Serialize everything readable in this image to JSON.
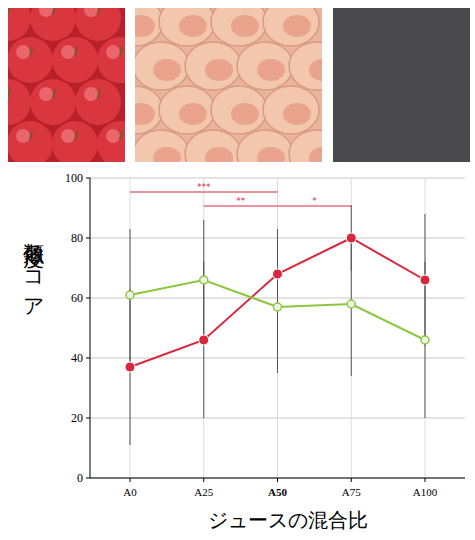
{
  "chart_data": {
    "type": "line",
    "x_label": "ジュースの混合比",
    "y_label": "類似度スコア",
    "categories": [
      "A0",
      "A25",
      "A50",
      "A75",
      "A100"
    ],
    "series": [
      {
        "color": "#d7263d",
        "marker": "circle",
        "line_style": "solid",
        "values": [
          37,
          46,
          68,
          80,
          66
        ],
        "errors": [
          26,
          26,
          15,
          11,
          22
        ]
      },
      {
        "color": "#8cc63f",
        "marker": "circle-open",
        "line_style": "solid",
        "values": [
          61,
          66,
          57,
          58,
          46
        ],
        "errors": [
          22,
          20,
          22,
          24,
          26
        ]
      }
    ],
    "annotations": [
      {
        "from": "A0",
        "to": "A50",
        "label": "***"
      },
      {
        "from": "A25",
        "to": "A50",
        "label": "**"
      },
      {
        "from": "A50",
        "to": "A75",
        "label": "*"
      }
    ],
    "ylim": [
      0,
      100
    ],
    "yticks": [
      0,
      20,
      40,
      60,
      80,
      100
    ],
    "grid": true
  }
}
